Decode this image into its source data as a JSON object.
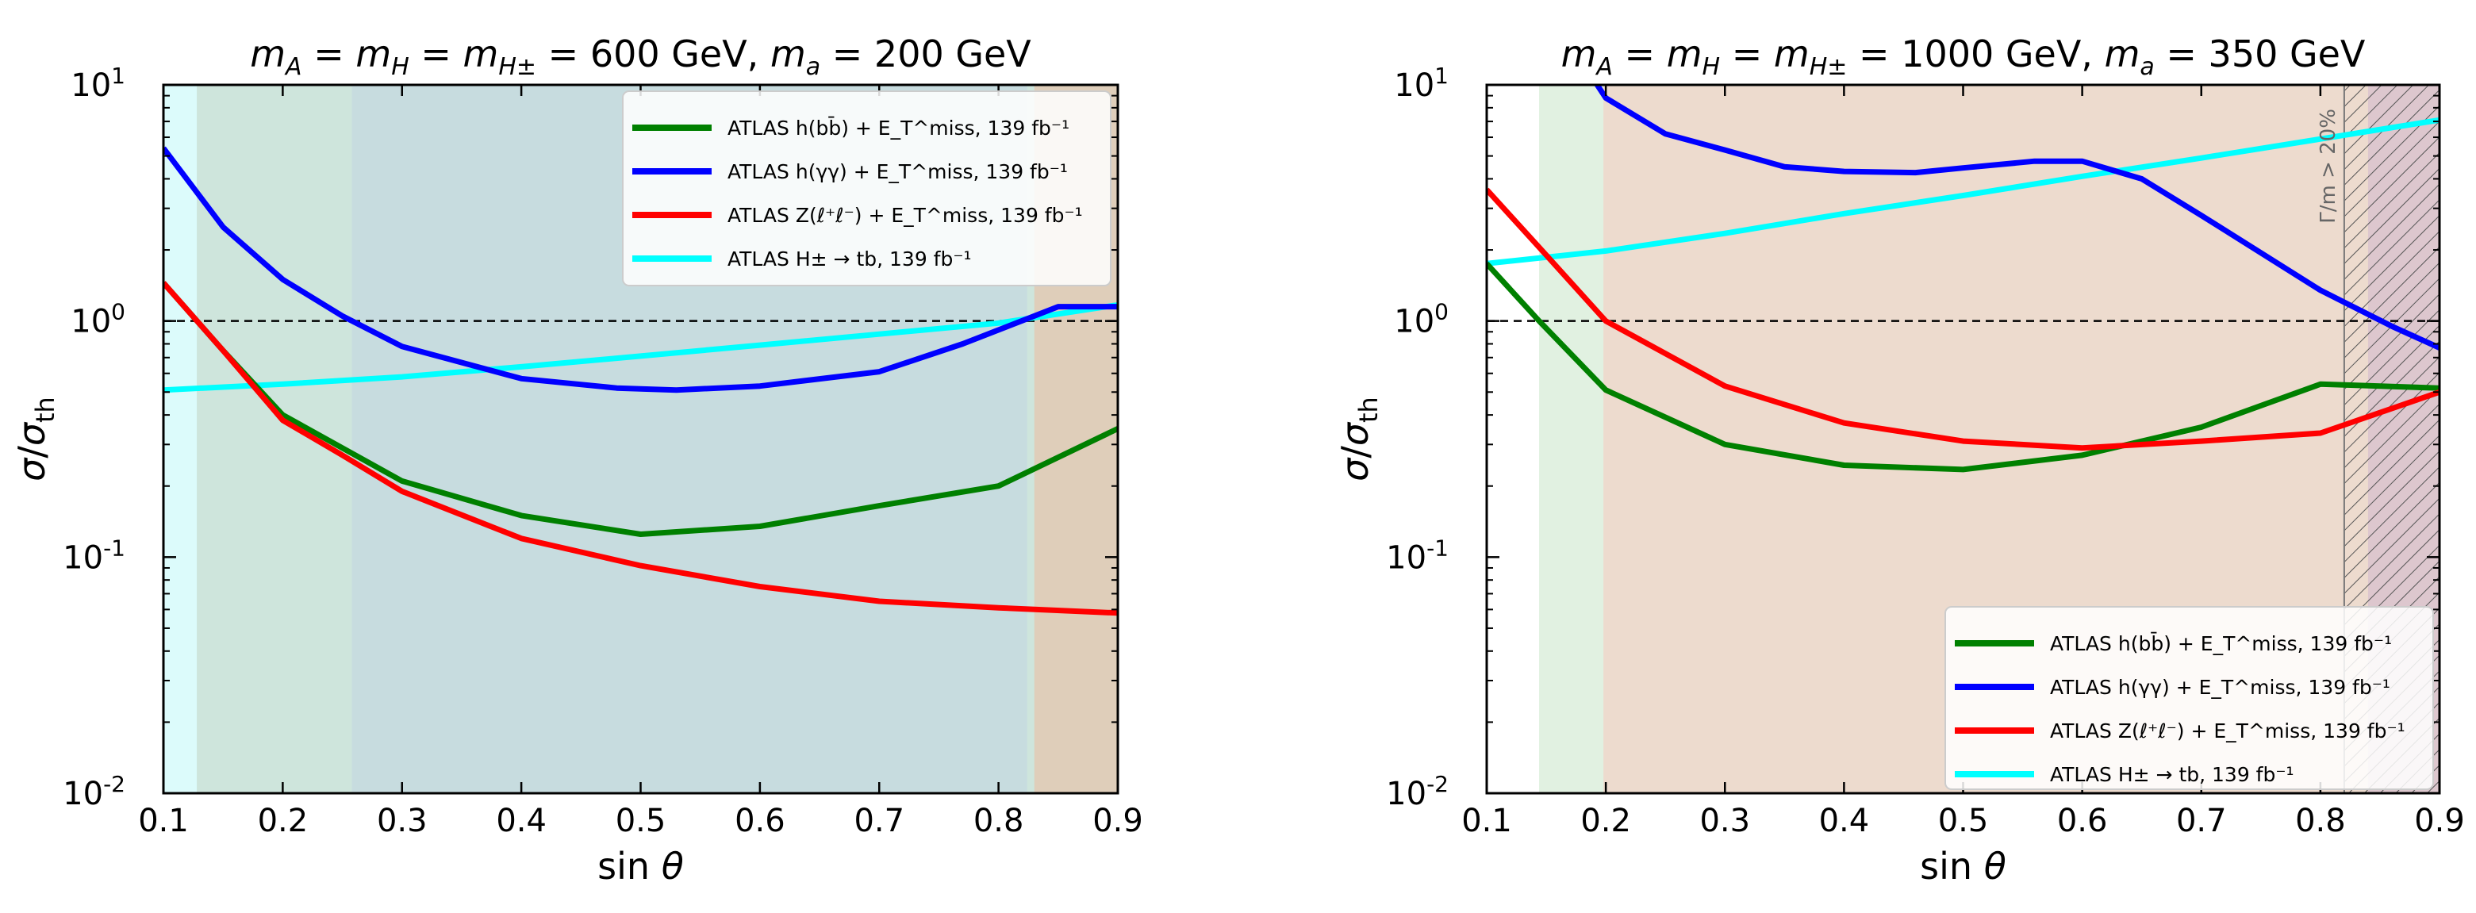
{
  "chart_data": [
    {
      "type": "line",
      "title": "m_A = m_H = m_H± = 600 GeV, m_a = 200 GeV",
      "xlabel": "sin θ",
      "ylabel": "σ/σ_th",
      "xlim": [
        0.1,
        0.9
      ],
      "ylim": [
        0.01,
        10
      ],
      "yscale": "log",
      "xticks": [
        "0.1",
        "0.2",
        "0.3",
        "0.4",
        "0.5",
        "0.6",
        "0.7",
        "0.8",
        "0.9"
      ],
      "yticks": [
        "10^-2",
        "10^-1",
        "10^0",
        "10^1"
      ],
      "reference_line": 1.0,
      "legend_position": "top-right",
      "series": [
        {
          "name": "ATLAS h(bb̄) + E_T^miss, 139 fb⁻¹",
          "color": "#008000",
          "x": [
            0.1,
            0.15,
            0.2,
            0.3,
            0.4,
            0.5,
            0.6,
            0.7,
            0.8,
            0.9
          ],
          "y": [
            1.45,
            0.75,
            0.4,
            0.21,
            0.15,
            0.125,
            0.135,
            0.165,
            0.2,
            0.35
          ],
          "excluded_from": 0.128,
          "fill_color": "#b5deb5"
        },
        {
          "name": "ATLAS h(γγ) + E_T^miss, 139 fb⁻¹",
          "color": "#0000ff",
          "x": [
            0.1,
            0.15,
            0.2,
            0.25,
            0.3,
            0.4,
            0.48,
            0.53,
            0.6,
            0.7,
            0.77,
            0.83,
            0.85,
            0.9
          ],
          "y": [
            5.4,
            2.5,
            1.5,
            1.05,
            0.78,
            0.57,
            0.52,
            0.51,
            0.53,
            0.61,
            0.8,
            1.05,
            1.15,
            1.15
          ],
          "excluded_range": [
            0.258,
            0.824
          ],
          "fill_color": "#9a9af5"
        },
        {
          "name": "ATLAS Z(ℓ⁺ℓ⁻) + E_T^miss, 139 fb⁻¹",
          "color": "#ff0000",
          "x": [
            0.1,
            0.15,
            0.2,
            0.25,
            0.3,
            0.4,
            0.5,
            0.6,
            0.7,
            0.8,
            0.9
          ],
          "y": [
            1.45,
            0.75,
            0.38,
            0.27,
            0.19,
            0.12,
            0.092,
            0.075,
            0.065,
            0.061,
            0.058
          ],
          "excluded_from": 0.128,
          "fill_color": "#e8b4a4"
        },
        {
          "name": "ATLAS H± → tb, 139 fb⁻¹",
          "color": "#00ffff",
          "x": [
            0.1,
            0.2,
            0.3,
            0.4,
            0.5,
            0.6,
            0.7,
            0.8,
            0.9
          ],
          "y": [
            0.51,
            0.54,
            0.58,
            0.64,
            0.71,
            0.79,
            0.88,
            0.98,
            1.17
          ],
          "excluded_range": [
            0.1,
            0.83
          ],
          "fill_color": "#bff7f7"
        }
      ]
    },
    {
      "type": "line",
      "title": "m_A = m_H = m_H± = 1000 GeV, m_a = 350 GeV",
      "xlabel": "sin θ",
      "ylabel": "σ/σ_th",
      "xlim": [
        0.1,
        0.9
      ],
      "ylim": [
        0.01,
        10
      ],
      "yscale": "log",
      "xticks": [
        "0.1",
        "0.2",
        "0.3",
        "0.4",
        "0.5",
        "0.6",
        "0.7",
        "0.8",
        "0.9"
      ],
      "yticks": [
        "10^-2",
        "10^-1",
        "10^0",
        "10^1"
      ],
      "reference_line": 1.0,
      "legend_position": "bottom-right",
      "hatched_region": {
        "from": 0.82,
        "to": 0.9,
        "label": "Γ/m > 20%"
      },
      "series": [
        {
          "name": "ATLAS h(bb̄) + E_T^miss, 139 fb⁻¹",
          "color": "#008000",
          "x": [
            0.1,
            0.144,
            0.2,
            0.3,
            0.4,
            0.5,
            0.6,
            0.7,
            0.8,
            0.9
          ],
          "y": [
            1.75,
            1.0,
            0.51,
            0.3,
            0.245,
            0.235,
            0.27,
            0.355,
            0.54,
            0.52
          ],
          "excluded_from": 0.144,
          "fill_color": "#c9e6c9"
        },
        {
          "name": "ATLAS h(γγ) + E_T^miss, 139 fb⁻¹",
          "color": "#0000ff",
          "x": [
            0.19,
            0.2,
            0.25,
            0.3,
            0.35,
            0.4,
            0.46,
            0.5,
            0.56,
            0.6,
            0.65,
            0.7,
            0.8,
            0.86,
            0.9
          ],
          "y": [
            10.5,
            8.8,
            6.2,
            5.3,
            4.5,
            4.3,
            4.25,
            4.45,
            4.75,
            4.75,
            4.0,
            2.8,
            1.35,
            0.95,
            0.77
          ],
          "excluded_from": 0.84,
          "fill_color": "#a0a0e0"
        },
        {
          "name": "ATLAS Z(ℓ⁺ℓ⁻) + E_T^miss, 139 fb⁻¹",
          "color": "#ff0000",
          "x": [
            0.1,
            0.15,
            0.2,
            0.3,
            0.4,
            0.5,
            0.6,
            0.7,
            0.8,
            0.9
          ],
          "y": [
            3.6,
            1.9,
            1.0,
            0.53,
            0.37,
            0.31,
            0.29,
            0.31,
            0.335,
            0.5
          ],
          "excluded_from": 0.198,
          "fill_color": "#f8c8c0"
        },
        {
          "name": "ATLAS H± → tb, 139 fb⁻¹",
          "color": "#00ffff",
          "x": [
            0.1,
            0.2,
            0.3,
            0.4,
            0.5,
            0.6,
            0.7,
            0.8,
            0.9
          ],
          "y": [
            1.75,
            1.98,
            2.35,
            2.85,
            3.4,
            4.1,
            4.9,
            5.9,
            7.1
          ]
        }
      ]
    }
  ]
}
